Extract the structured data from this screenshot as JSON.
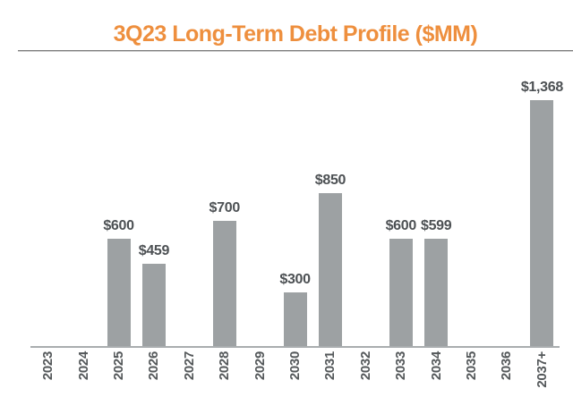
{
  "header": {
    "title": "3Q23 Long-Term Debt Profile ($MM)"
  },
  "colors": {
    "title": "#EE8F3E",
    "title_rule": "#7F7F7F",
    "bar": "#9DA1A3",
    "value_label": "#4D5154",
    "tick_label": "#54585A",
    "axis_line": "#A9ADAF",
    "background": "#FFFFFF"
  },
  "chart_data": {
    "type": "bar",
    "title": "3Q23 Long-Term Debt Profile ($MM)",
    "categories": [
      "2023",
      "2024",
      "2025",
      "2026",
      "2027",
      "2028",
      "2029",
      "2030",
      "2031",
      "2032",
      "2033",
      "2034",
      "2035",
      "2036",
      "2037+"
    ],
    "values": [
      0,
      0,
      600,
      459,
      0,
      700,
      0,
      300,
      850,
      0,
      600,
      599,
      0,
      0,
      1368
    ],
    "value_labels": [
      "",
      "",
      "$600",
      "$459",
      "",
      "$700",
      "",
      "$300",
      "$850",
      "",
      "$600",
      "$599",
      "",
      "",
      "$1,368"
    ],
    "xlabel": "",
    "ylabel": "",
    "ylim": [
      0,
      1400
    ],
    "grid": false,
    "legend": "none",
    "x_tick_rotation": -90,
    "bar_color": "#9DA1A3"
  }
}
